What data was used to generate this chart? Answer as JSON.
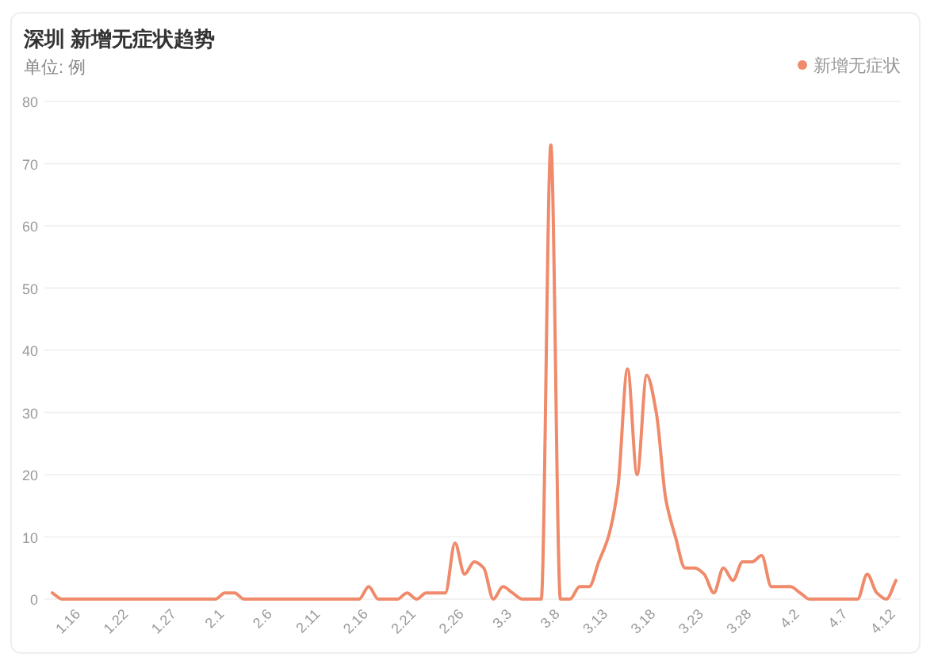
{
  "chart_data": {
    "type": "line",
    "title": "深圳 新增无症状趋势",
    "subtitle": "单位: 例",
    "categories": [
      null,
      null,
      null,
      "1.16",
      null,
      null,
      null,
      null,
      "1.22",
      null,
      null,
      null,
      null,
      "1.27",
      null,
      null,
      null,
      null,
      "2.1",
      null,
      null,
      null,
      null,
      "2.6",
      null,
      null,
      null,
      null,
      "2.11",
      null,
      null,
      null,
      null,
      "2.16",
      null,
      null,
      null,
      null,
      "2.21",
      null,
      null,
      null,
      null,
      "2.26",
      null,
      null,
      null,
      null,
      "3.3",
      null,
      null,
      null,
      null,
      "3.8",
      null,
      null,
      null,
      null,
      "3.13",
      null,
      null,
      null,
      null,
      "3.18",
      null,
      null,
      null,
      null,
      "3.23",
      null,
      null,
      null,
      null,
      "3.28",
      null,
      null,
      null,
      null,
      "4.2",
      null,
      null,
      null,
      null,
      "4.7",
      null,
      null,
      null,
      null,
      "4.12"
    ],
    "series": [
      {
        "name": "新增无症状",
        "color": "#ef8a6a",
        "values": [
          1,
          0,
          0,
          0,
          0,
          0,
          0,
          0,
          0,
          0,
          0,
          0,
          0,
          0,
          0,
          0,
          0,
          0,
          1,
          1,
          0,
          0,
          0,
          0,
          0,
          0,
          0,
          0,
          0,
          0,
          0,
          0,
          0,
          2,
          0,
          0,
          0,
          1,
          0,
          1,
          1,
          1,
          9,
          4,
          6,
          5,
          0,
          2,
          1,
          0,
          0,
          0,
          73,
          0,
          0,
          2,
          2,
          6,
          10,
          18,
          37,
          20,
          36,
          30,
          16,
          10,
          5,
          5,
          4,
          1,
          5,
          3,
          6,
          6,
          7,
          2,
          2,
          2,
          1,
          0,
          0,
          0,
          0,
          0,
          0,
          4,
          1,
          0,
          3
        ]
      }
    ],
    "ylim": [
      0,
      80
    ],
    "yticks": [
      0,
      10,
      20,
      30,
      40,
      50,
      60,
      70,
      80
    ],
    "grid": "y",
    "legend": "top right",
    "marker": "none",
    "line_style": "solid"
  }
}
